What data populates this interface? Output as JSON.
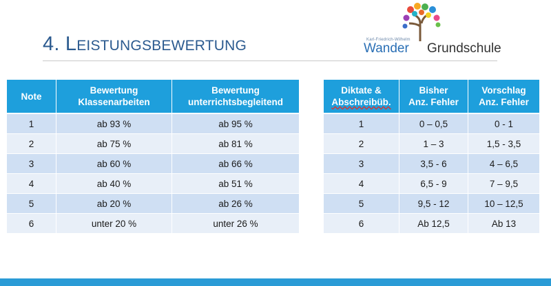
{
  "title": {
    "number": "4.",
    "word_first": "L",
    "word_rest": "EISTUNGSBEWERTUNG"
  },
  "logo": {
    "tagline": "Karl-Friedrich-Wilhelm",
    "name_left": "Wander",
    "name_right": "Grundschule"
  },
  "left_table": {
    "headers": [
      [
        "Note"
      ],
      [
        "Bewertung",
        "Klassenarbeiten"
      ],
      [
        "Bewertung",
        "unterrichtsbegleitend"
      ]
    ],
    "rows": [
      [
        "1",
        "ab 93 %",
        "ab 95 %"
      ],
      [
        "2",
        "ab 75 %",
        "ab 81 %"
      ],
      [
        "3",
        "ab 60 %",
        "ab 66 %"
      ],
      [
        "4",
        "ab 40 %",
        "ab 51 %"
      ],
      [
        "5",
        "ab 20 %",
        "ab 26 %"
      ],
      [
        "6",
        "unter 20 %",
        "unter 26 %"
      ]
    ]
  },
  "right_table": {
    "headers": [
      [
        "Diktate &",
        "Abschreibüb."
      ],
      [
        "Bisher",
        "Anz. Fehler"
      ],
      [
        "Vorschlag",
        "Anz. Fehler"
      ]
    ],
    "rows": [
      [
        "1",
        "0 – 0,5",
        "0 - 1"
      ],
      [
        "2",
        "1 – 3",
        "1,5 - 3,5"
      ],
      [
        "3",
        "3,5 - 6",
        "4 – 6,5"
      ],
      [
        "4",
        "6,5 - 9",
        "7 – 9,5"
      ],
      [
        "5",
        "9,5 - 12",
        "10 – 12,5"
      ],
      [
        "6",
        "Ab 12,5",
        "Ab 13"
      ]
    ]
  },
  "colors": {
    "header_bg": "#1e9fdc",
    "row_dark": "#cfdff3",
    "row_light": "#e8eff8",
    "title": "#2b5a8f",
    "bottom_bar": "#2a9bd6"
  }
}
